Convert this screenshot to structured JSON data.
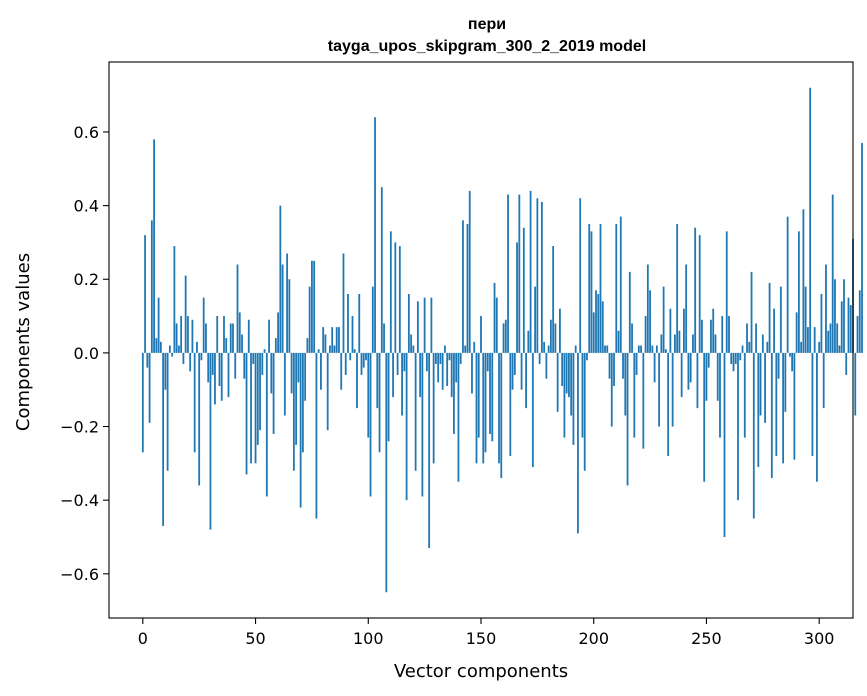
{
  "chart_data": {
    "type": "bar",
    "title": [
      "пери",
      "tayga_upos_skipgram_300_2_2019 model"
    ],
    "xlabel": "Vector components",
    "ylabel": "Components values",
    "xlim": [
      -15,
      315
    ],
    "ylim": [
      -0.72,
      0.79
    ],
    "xticks": [
      0,
      50,
      100,
      150,
      200,
      250,
      300
    ],
    "xtick_labels": [
      "0",
      "50",
      "100",
      "150",
      "200",
      "250",
      "300"
    ],
    "yticks": [
      -0.6,
      -0.4,
      -0.2,
      0.0,
      0.2,
      0.4,
      0.6
    ],
    "ytick_labels": [
      "−0.6",
      "−0.4",
      "−0.2",
      "0.0",
      "0.2",
      "0.4",
      "0.6"
    ],
    "bar_color": "#1f77b4",
    "grid": false,
    "legend": null,
    "values": [
      -0.27,
      0.32,
      -0.04,
      -0.19,
      0.36,
      0.58,
      0.04,
      0.15,
      0.03,
      -0.47,
      -0.1,
      -0.32,
      0.02,
      -0.01,
      0.29,
      0.08,
      0.02,
      0.1,
      -0.03,
      0.21,
      0.1,
      -0.05,
      0.09,
      -0.27,
      0.03,
      -0.36,
      -0.02,
      0.15,
      0.08,
      -0.08,
      -0.48,
      -0.06,
      -0.14,
      0.1,
      -0.09,
      -0.13,
      0.1,
      0.04,
      -0.12,
      0.08,
      0.08,
      -0.07,
      0.24,
      0.11,
      0.05,
      -0.07,
      -0.33,
      0.09,
      -0.3,
      -0.03,
      -0.3,
      -0.25,
      -0.21,
      -0.06,
      0.01,
      -0.39,
      0.09,
      -0.11,
      -0.22,
      0.04,
      0.11,
      0.4,
      0.24,
      -0.17,
      0.27,
      0.2,
      -0.11,
      -0.32,
      -0.25,
      -0.08,
      -0.42,
      -0.27,
      -0.13,
      0.04,
      0.18,
      0.25,
      0.25,
      -0.45,
      0.01,
      -0.1,
      0.07,
      0.05,
      -0.21,
      0.02,
      0.07,
      0.02,
      0.07,
      0.07,
      -0.1,
      0.27,
      -0.06,
      0.16,
      -0.02,
      0.1,
      0.01,
      -0.15,
      0.16,
      -0.06,
      -0.04,
      -0.02,
      -0.23,
      -0.39,
      0.18,
      0.64,
      -0.15,
      -0.27,
      0.45,
      0.08,
      -0.65,
      -0.24,
      0.33,
      -0.12,
      0.3,
      -0.06,
      0.29,
      -0.17,
      -0.05,
      -0.4,
      0.16,
      0.05,
      0.02,
      -0.32,
      0.14,
      -0.12,
      -0.39,
      0.15,
      -0.05,
      -0.53,
      0.15,
      -0.3,
      -0.03,
      -0.08,
      -0.03,
      -0.1,
      0.02,
      -0.09,
      -0.02,
      -0.12,
      -0.22,
      -0.08,
      -0.35,
      -0.03,
      0.36,
      0.02,
      0.35,
      0.44,
      -0.11,
      0.03,
      -0.3,
      -0.23,
      0.1,
      -0.3,
      -0.27,
      -0.05,
      -0.22,
      -0.24,
      0.19,
      0.15,
      -0.3,
      -0.34,
      0.08,
      0.09,
      0.43,
      -0.28,
      -0.1,
      -0.06,
      0.3,
      0.43,
      -0.1,
      0.34,
      -0.15,
      0.06,
      0.44,
      -0.31,
      0.18,
      0.42,
      -0.03,
      0.41,
      0.03,
      -0.07,
      0.02,
      0.09,
      0.29,
      0.08,
      -0.16,
      0.12,
      -0.09,
      -0.23,
      -0.11,
      -0.12,
      -0.17,
      -0.25,
      0.02,
      -0.49,
      0.42,
      -0.23,
      -0.32,
      -0.02,
      0.35,
      0.33,
      0.11,
      0.17,
      0.16,
      0.35,
      0.14,
      0.02,
      0.02,
      -0.07,
      -0.2,
      -0.09,
      0.35,
      0.06,
      0.37,
      -0.07,
      -0.17,
      -0.36,
      0.22,
      0.08,
      -0.23,
      -0.06,
      0.02,
      0.02,
      -0.26,
      0.1,
      0.24,
      0.17,
      0.02,
      -0.08,
      0.02,
      -0.2,
      0.05,
      0.18,
      0.01,
      -0.28,
      0.12,
      -0.2,
      0.05,
      0.35,
      0.06,
      -0.12,
      0.12,
      0.24,
      -0.1,
      -0.08,
      0.05,
      0.34,
      -0.15,
      0.32,
      0.09,
      -0.35,
      -0.13,
      -0.04,
      0.09,
      0.12,
      0.05,
      -0.13,
      -0.23,
      0.1,
      -0.5,
      0.33,
      0.1,
      -0.03,
      -0.05,
      -0.03,
      -0.4,
      -0.02,
      0.02,
      -0.23,
      0.08,
      0.03,
      0.22,
      -0.45,
      0.08,
      -0.31,
      -0.17,
      0.05,
      -0.19,
      0.03,
      0.19,
      -0.34,
      0.12,
      -0.28,
      -0.07,
      0.18,
      -0.3,
      -0.16,
      0.37,
      -0.01,
      -0.05,
      -0.29,
      0.11,
      0.33,
      0.03,
      0.39,
      0.18,
      0.07,
      0.72,
      -0.28,
      0.07,
      -0.35,
      0.03,
      0.16,
      -0.15,
      0.24,
      0.06,
      0.08,
      0.43,
      0.2,
      0.08,
      0.02,
      0.14,
      0.2,
      -0.06,
      0.15,
      0.13,
      0.31,
      -0.17,
      0.1,
      0.17,
      0.57
    ]
  }
}
